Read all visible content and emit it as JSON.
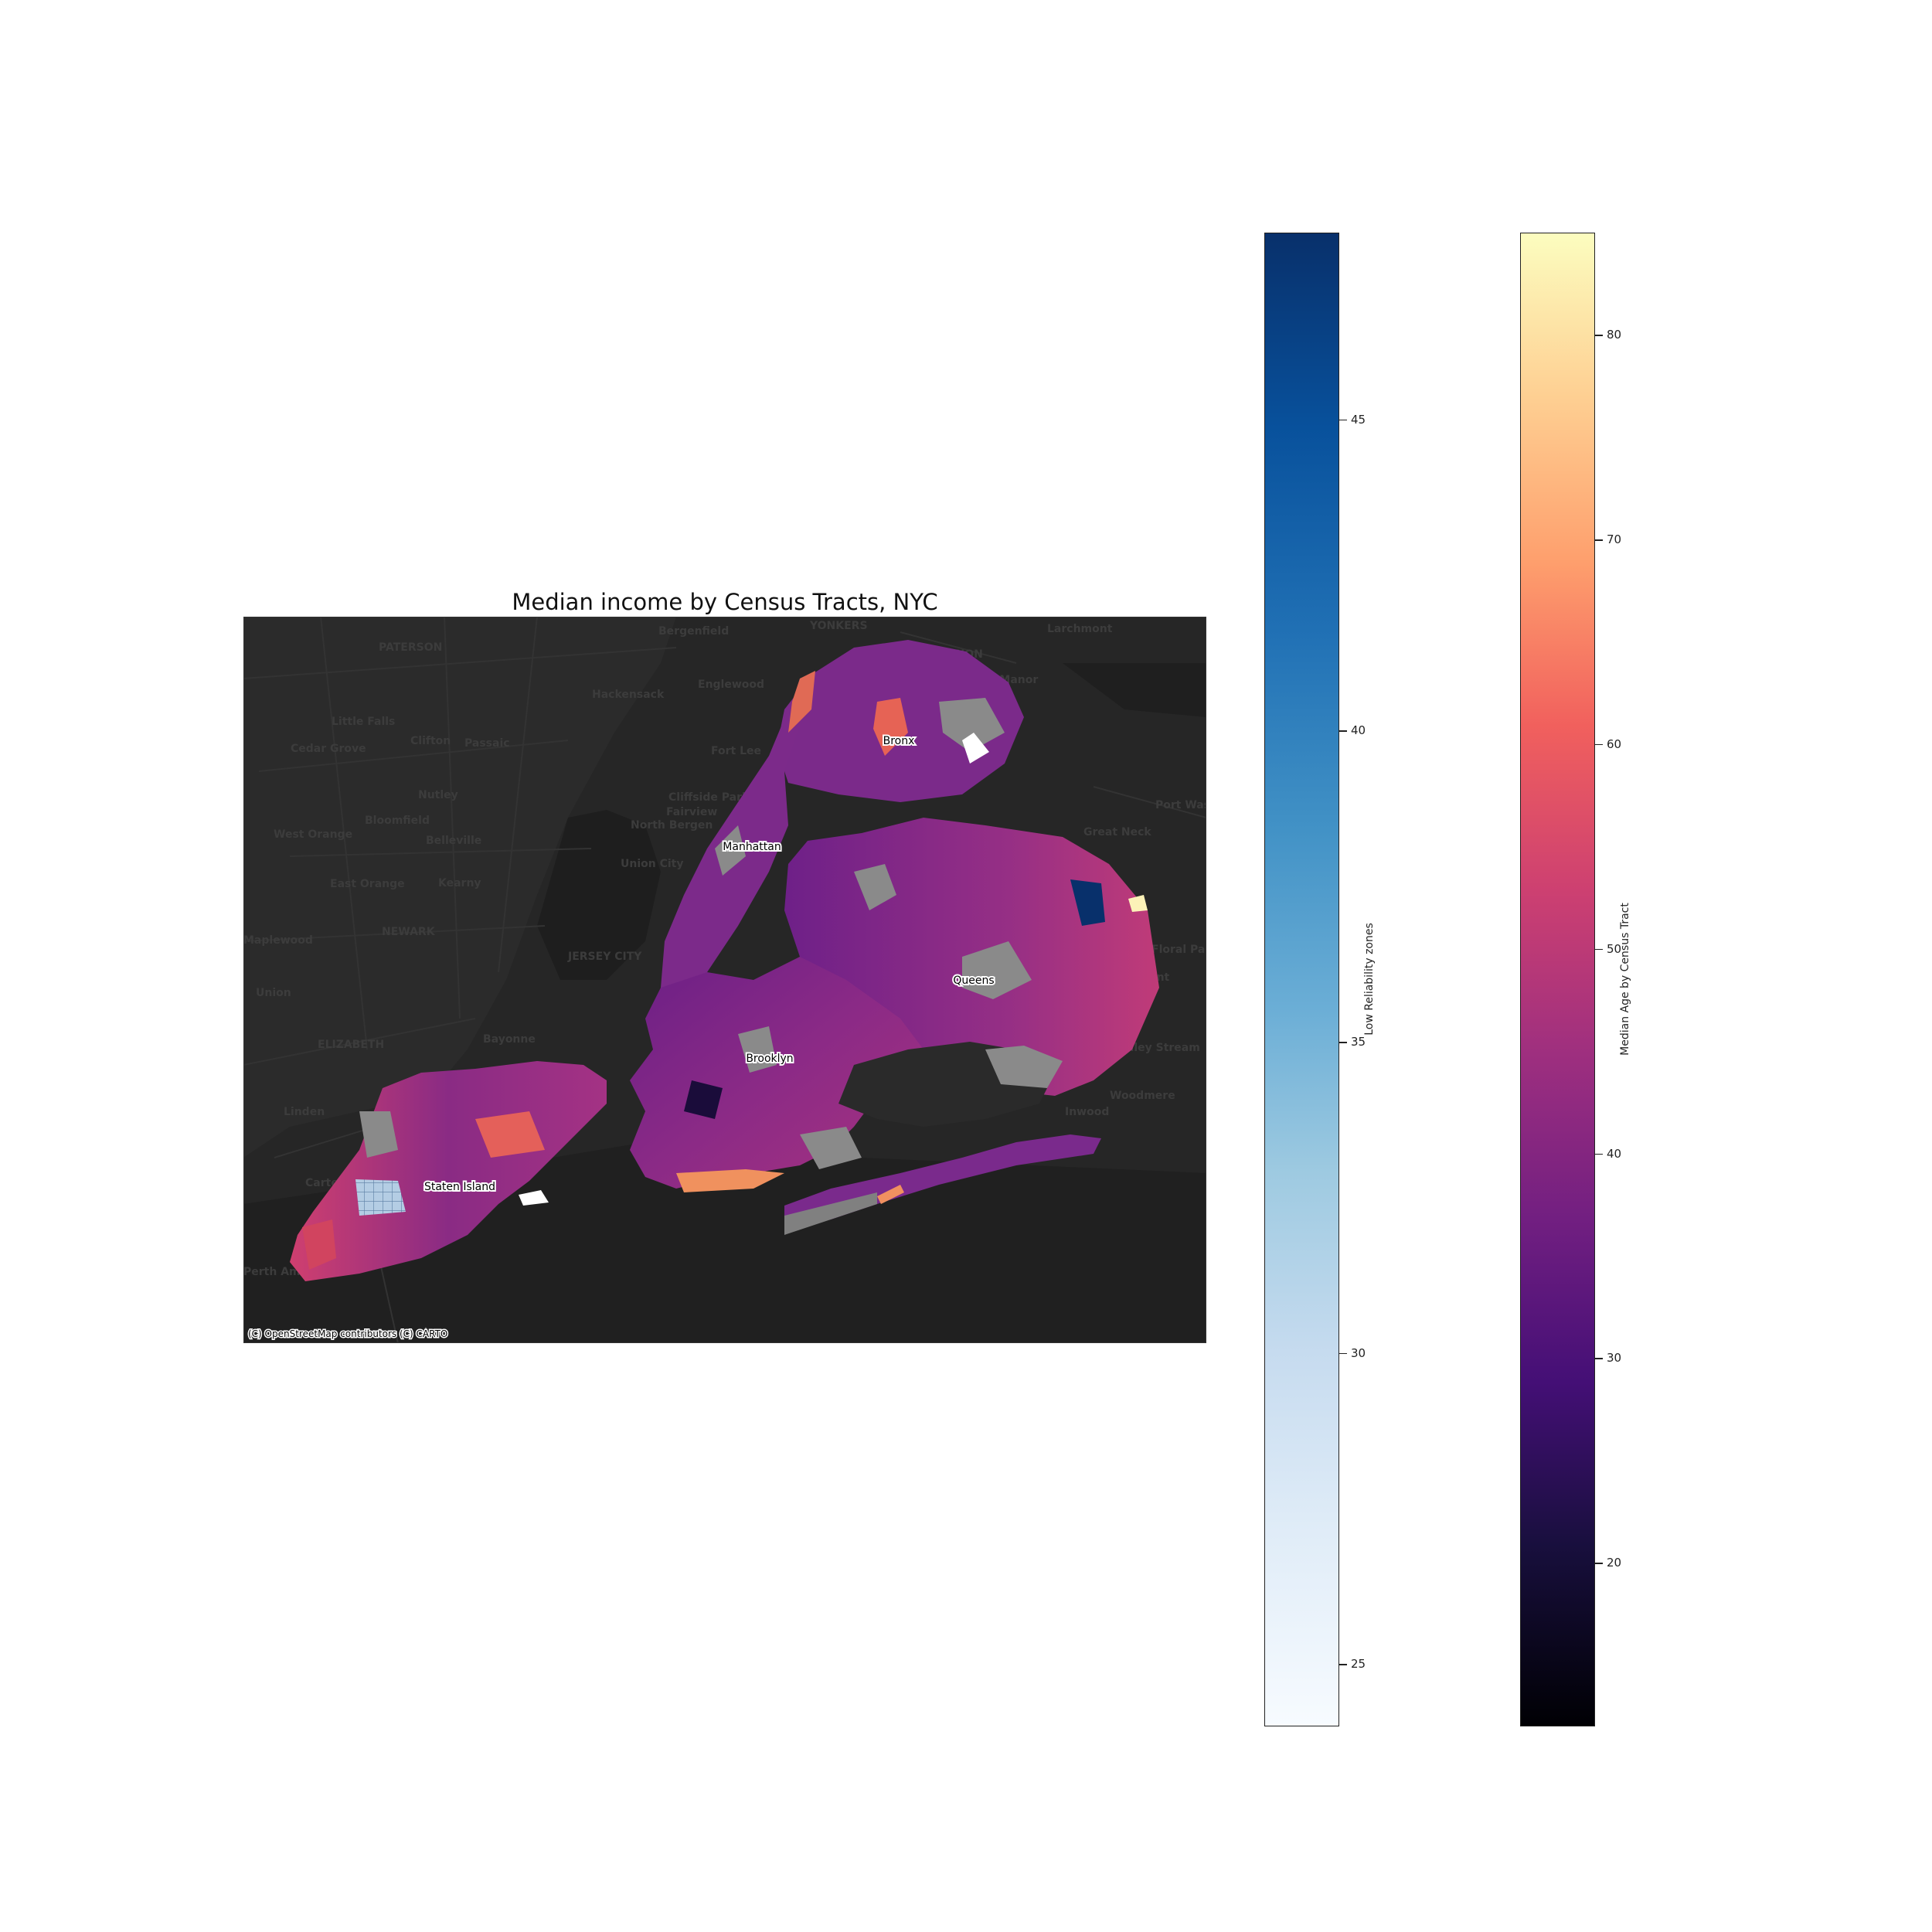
{
  "title": "Median income by Census Tracts, NYC",
  "attribution": "(C) OpenStreetMap contributors (C) CARTO",
  "boroughs": [
    "Bronx",
    "Manhattan",
    "Queens",
    "Brooklyn",
    "Staten Island"
  ],
  "places": [
    "PATERSON",
    "Bergenfield",
    "YONKERS",
    "MOUNT VERNON",
    "Larchmont",
    "Hackensack",
    "Englewood",
    "Pelham Manor",
    "Little Falls",
    "Cedar Grove",
    "Clifton",
    "Passaic",
    "Fort Lee",
    "Nutley",
    "Cliffside Park",
    "Fairview",
    "Port Washington",
    "Bloomfield",
    "North Bergen",
    "West Orange",
    "Belleville",
    "Great Neck",
    "Union City",
    "East Orange",
    "Kearny",
    "NEWARK",
    "JERSEY CITY",
    "Maplewood",
    "Floral Park",
    "Union",
    "Elmont",
    "Bayonne",
    "ELIZABETH",
    "Valley Stream",
    "Linden",
    "Woodmere",
    "Inwood",
    "Carteret",
    "Perth Amboy"
  ],
  "colorbars": [
    {
      "label": "Low Reliability zones",
      "colormap": "Blues",
      "range": [
        24,
        48
      ],
      "ticks": [
        "45",
        "40",
        "35",
        "30",
        "25"
      ],
      "tick_values": [
        45,
        40,
        35,
        30,
        25
      ]
    },
    {
      "label": "Median Age by Census Tract",
      "colormap": "magma",
      "range": [
        12,
        85
      ],
      "ticks": [
        "80",
        "70",
        "60",
        "50",
        "40",
        "30",
        "20"
      ],
      "tick_values": [
        80,
        70,
        60,
        50,
        40,
        30,
        20
      ]
    }
  ],
  "colors": {
    "basemap": "#262626",
    "water": "#1e1e1e",
    "missing": "#808080",
    "tract_fill": "#7a2a8c"
  }
}
